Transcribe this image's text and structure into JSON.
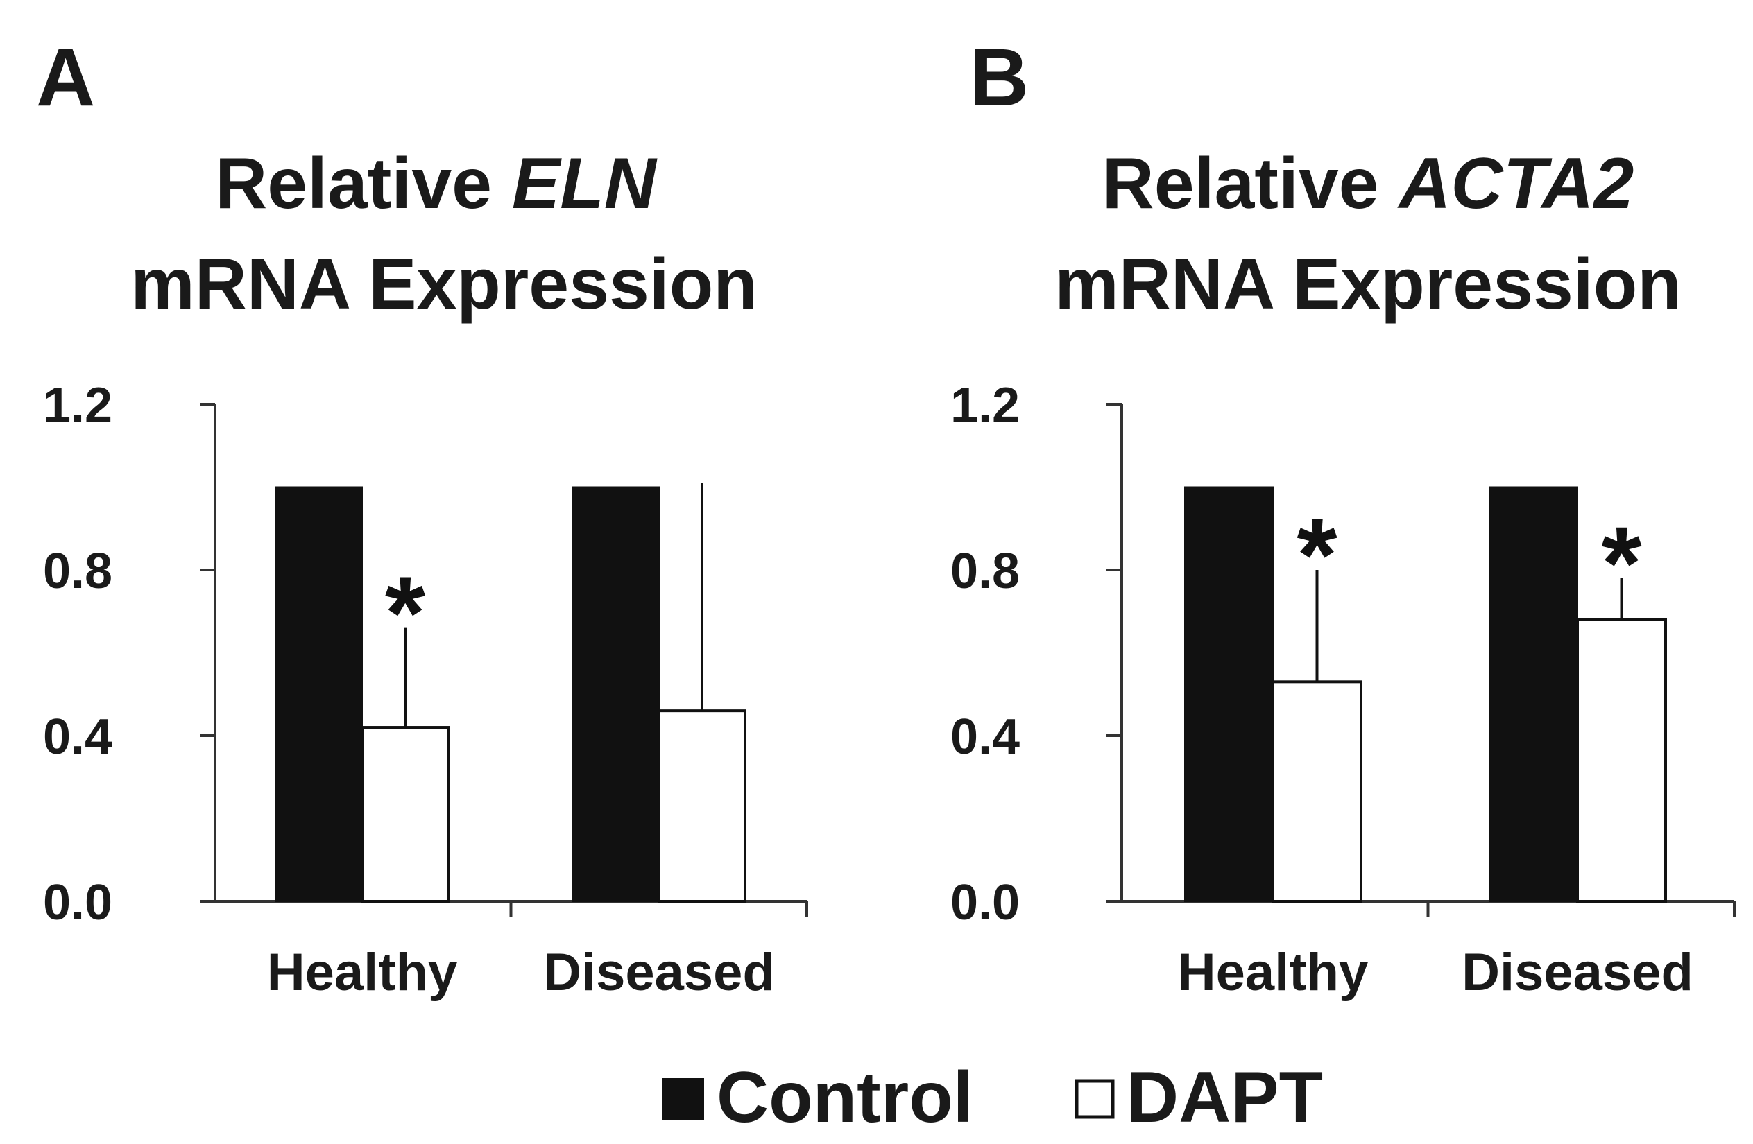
{
  "chart_data": [
    {
      "type": "bar",
      "panel": "A",
      "title_prefix": "Relative ",
      "title_gene": "ELN",
      "title_line2": "mRNA Expression",
      "categories": [
        "Healthy",
        "Diseased"
      ],
      "series": [
        {
          "name": "Control",
          "values": [
            1.0,
            1.0
          ],
          "errors": [
            0,
            0
          ],
          "significant": [
            false,
            false
          ]
        },
        {
          "name": "DAPT",
          "values": [
            0.42,
            0.46
          ],
          "errors": [
            0.24,
            0.55
          ],
          "significant": [
            true,
            false
          ]
        }
      ],
      "ylim": [
        0,
        1.2
      ],
      "yticks": [
        "0.0",
        "0.4",
        "0.8",
        "1.2"
      ],
      "xlabel": "",
      "ylabel": ""
    },
    {
      "type": "bar",
      "panel": "B",
      "title_prefix": "Relative ",
      "title_gene": "ACTA2",
      "title_line2": "mRNA Expression",
      "categories": [
        "Healthy",
        "Diseased"
      ],
      "series": [
        {
          "name": "Control",
          "values": [
            1.0,
            1.0
          ],
          "errors": [
            0,
            0
          ],
          "significant": [
            false,
            false
          ]
        },
        {
          "name": "DAPT",
          "values": [
            0.53,
            0.68
          ],
          "errors": [
            0.27,
            0.1
          ],
          "significant": [
            true,
            true
          ]
        }
      ],
      "ylim": [
        0,
        1.2
      ],
      "yticks": [
        "0.0",
        "0.4",
        "0.8",
        "1.2"
      ],
      "xlabel": "",
      "ylabel": ""
    }
  ],
  "significance_marker": "*",
  "legend": {
    "items": [
      {
        "label": "Control",
        "color": "#111111"
      },
      {
        "label": "DAPT",
        "color": "#ffffff"
      }
    ]
  }
}
